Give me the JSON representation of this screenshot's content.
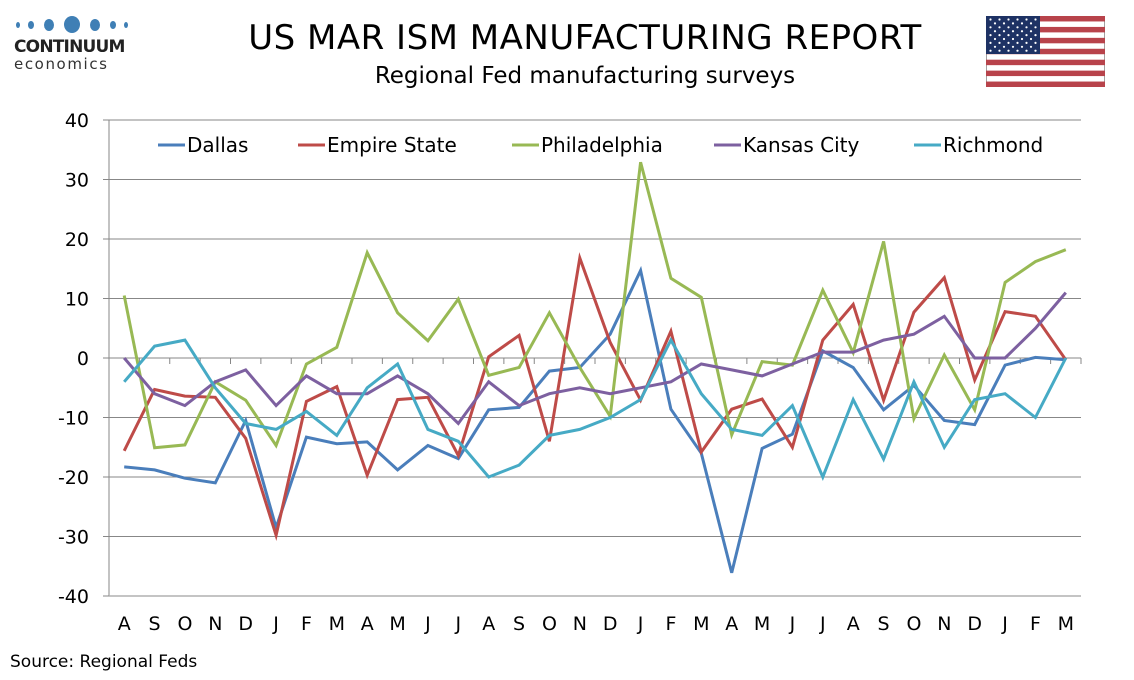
{
  "header": {
    "logo_name": "CONTINUUM",
    "logo_sub": "economics",
    "title": "US MAR ISM MANUFACTURING REPORT",
    "subtitle": "Regional Fed manufacturing surveys",
    "flag_icon": "us-flag-icon"
  },
  "footer": {
    "source": "Source: Regional Feds"
  },
  "chart_data": {
    "type": "line",
    "title": "US MAR ISM MANUFACTURING REPORT",
    "subtitle": "Regional Fed manufacturing surveys",
    "xlabel": "",
    "ylabel": "",
    "ylim": [
      -40,
      40
    ],
    "yticks": [
      40,
      30,
      20,
      10,
      0,
      -10,
      -20,
      -30,
      -40
    ],
    "grid": true,
    "legend_position": "top",
    "categories": [
      "A",
      "S",
      "O",
      "N",
      "D",
      "J",
      "F",
      "M",
      "A",
      "M",
      "J",
      "J",
      "A",
      "S",
      "O",
      "N",
      "D",
      "J",
      "F",
      "M",
      "A",
      "M",
      "J",
      "J",
      "A",
      "S",
      "O",
      "N",
      "D",
      "J",
      "F",
      "M"
    ],
    "series": [
      {
        "name": "Dallas",
        "color": "#4a7ebb",
        "values": [
          -18.3,
          -18.8,
          -20.2,
          -21.0,
          -10.5,
          -28.5,
          -13.3,
          -14.4,
          -14.1,
          -18.8,
          -14.7,
          -16.9,
          -8.7,
          -8.3,
          -2.2,
          -1.6,
          4.0,
          14.7,
          -8.6,
          -16.0,
          -36.1,
          -15.2,
          -12.8,
          1.2,
          -1.6,
          -8.7,
          -4.6,
          -10.5,
          -11.2,
          -1.2,
          0.1,
          -0.3
        ]
      },
      {
        "name": "Empire State",
        "color": "#be4b48",
        "values": [
          -15.6,
          -5.3,
          -6.4,
          -6.6,
          -13.5,
          -29.8,
          -7.3,
          -4.8,
          -19.7,
          -7.0,
          -6.6,
          -16.4,
          0.2,
          3.8,
          -14.0,
          16.8,
          2.6,
          -7.1,
          4.5,
          -15.8,
          -8.6,
          -6.9,
          -15.0,
          3.0,
          9.0,
          -7.1,
          7.7,
          13.5,
          -3.7,
          7.8,
          7.0,
          -0.3
        ]
      },
      {
        "name": "Philadelphia",
        "color": "#98b954",
        "values": [
          10.5,
          -15.1,
          -14.6,
          -4.0,
          -7.1,
          -14.7,
          -1.0,
          1.8,
          17.7,
          7.6,
          2.9,
          9.9,
          -2.9,
          -1.6,
          7.6,
          -1.6,
          -9.8,
          32.9,
          13.4,
          10.2,
          -12.9,
          -0.6,
          -1.2,
          11.4,
          0.9,
          19.6,
          -10.2,
          0.5,
          -8.7,
          12.7,
          16.2,
          18.2
        ]
      },
      {
        "name": "Kansas City",
        "color": "#7d60a0",
        "values": [
          0,
          -6,
          -8,
          -4,
          -2,
          -8,
          -3,
          -6,
          -6,
          -3,
          -6,
          -11,
          -4,
          -8,
          -6,
          -5,
          -6,
          -5,
          -4,
          -1,
          -2,
          -3,
          -1,
          1,
          1,
          3,
          4,
          7,
          0,
          0,
          5,
          11
        ]
      },
      {
        "name": "Richmond",
        "color": "#46aac5",
        "values": [
          -4,
          2,
          3,
          -5,
          -11,
          -12,
          -9,
          -13,
          -5,
          -1,
          -12,
          -14,
          -20,
          -18,
          -13,
          -12,
          -10,
          -7,
          3,
          -6,
          -12,
          -13,
          -8,
          -20,
          -7,
          -17,
          -4,
          -15,
          -7,
          -6,
          -10,
          0
        ]
      }
    ]
  }
}
